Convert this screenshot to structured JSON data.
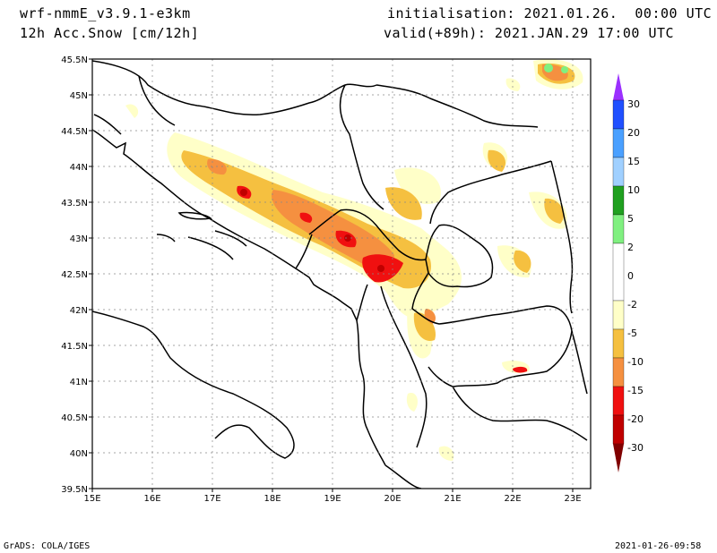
{
  "header": {
    "model": "wrf-nmmE_v3.9.1-e3km",
    "field": "12h Acc.Snow [cm/12h]",
    "init": "initialisation: 2021.01.26.  00:00 UTC",
    "valid": "valid(+89h): 2021.JAN.29 17:00 UTC"
  },
  "map": {
    "lon_labels": [
      "15E",
      "16E",
      "17E",
      "18E",
      "19E",
      "20E",
      "21E",
      "22E",
      "23E"
    ],
    "lat_labels": [
      "45.5N",
      "45N",
      "44.5N",
      "44N",
      "43.5N",
      "43N",
      "42.5N",
      "42N",
      "41.5N",
      "41N",
      "40.5N",
      "40N",
      "39.5N"
    ],
    "lon_range": [
      15,
      23.3
    ],
    "lat_range": [
      39.5,
      45.5
    ]
  },
  "colorbar": {
    "labels": [
      "30",
      "20",
      "15",
      "10",
      "5",
      "2",
      "0",
      "-2",
      "-5",
      "-10",
      "-15",
      "-20",
      "-30"
    ],
    "colors": [
      "#9b30ff",
      "#2050ff",
      "#4aa0ff",
      "#a0d0ff",
      "#20a020",
      "#80f080",
      "#ffffff",
      "#ffffc8",
      "#f5c040",
      "#f59040",
      "#f01010",
      "#c00000",
      "#800000"
    ]
  },
  "footer": {
    "credit": "GrADS: COLA/IGES",
    "timestamp": "2021-01-26-09:58"
  }
}
